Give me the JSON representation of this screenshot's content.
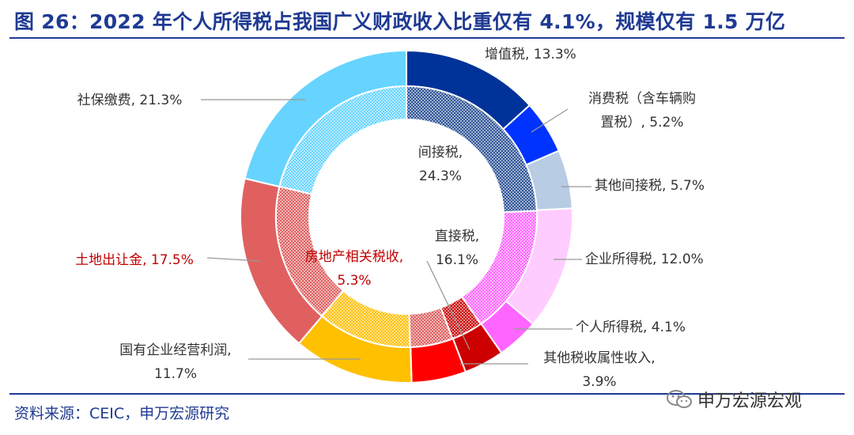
{
  "title": "图 26：2022 年个人所得税占我国广义财政收入比重仅有 4.1%，规模仅有 1.5 万亿",
  "source": "资料来源：CEIC，申万宏源研究",
  "watermark": "申万宏源宏观",
  "chart_data": {
    "type": "pie",
    "subtype": "nested donut",
    "unit": "%",
    "outer_ring": [
      {
        "name": "增值税",
        "value": 13.3,
        "color": "#003399",
        "label_lines": [
          "增值税, 13.3%"
        ]
      },
      {
        "name": "消费税（含车辆购置税）",
        "value": 5.2,
        "color": "#0033ff",
        "label_lines": [
          "消费税（含车辆购",
          "置税）, 5.2%"
        ]
      },
      {
        "name": "其他间接税",
        "value": 5.7,
        "color": "#b8cce4",
        "label_lines": [
          "其他间接税, 5.7%"
        ]
      },
      {
        "name": "企业所得税",
        "value": 12.0,
        "color": "#ffccff",
        "label_lines": [
          "企业所得税, 12.0%"
        ]
      },
      {
        "name": "个人所得税",
        "value": 4.1,
        "color": "#ff66ff",
        "label_lines": [
          "个人所得税, 4.1%"
        ]
      },
      {
        "name": "其他税收属性收入",
        "value": 3.9,
        "color": "#cc0000",
        "label_lines": [
          "其他税收属性收入,",
          "3.9%"
        ]
      },
      {
        "name": "房地产相关税收",
        "value": 5.3,
        "color": "#ff0000",
        "label_lines": []
      },
      {
        "name": "国有企业经营利润",
        "value": 11.7,
        "color": "#ffc000",
        "label_lines": [
          "国有企业经营利润,",
          "11.7%"
        ]
      },
      {
        "name": "土地出让金",
        "value": 17.5,
        "color": "#e06060",
        "label_lines": [
          "土地出让金, 17.5%"
        ],
        "label_color": "#c00000"
      },
      {
        "name": "社保缴费",
        "value": 21.3,
        "color": "#66d4ff",
        "label_lines": [
          "社保缴费, 21.3%"
        ]
      }
    ],
    "inner_ring": [
      {
        "name": "间接税",
        "value": 24.3,
        "color": "#2f5597",
        "label_lines": [
          "间接税,",
          "24.3%"
        ]
      },
      {
        "name": "直接税",
        "value": 16.1,
        "color": "#ff66ff",
        "label_lines": [
          "直接税,",
          "16.1%"
        ]
      },
      {
        "name": "其他税收属性收入",
        "value": 3.9,
        "color": "#cc0000",
        "label_lines": []
      },
      {
        "name": "房地产相关税收",
        "value": 5.3,
        "color": "#e06060",
        "label_lines": [
          "房地产相关税收,",
          "5.3%"
        ],
        "label_color": "#c00000"
      },
      {
        "name": "国有企业经营利润",
        "value": 11.7,
        "color": "#ffc000",
        "label_lines": []
      },
      {
        "name": "土地出让金",
        "value": 17.5,
        "color": "#e06060",
        "label_lines": []
      },
      {
        "name": "社保缴费",
        "value": 21.3,
        "color": "#66d4ff",
        "label_lines": []
      }
    ]
  }
}
